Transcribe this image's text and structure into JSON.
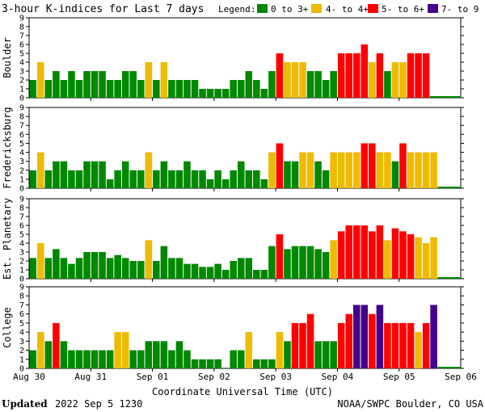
{
  "chart_data": {
    "type": "bar",
    "title": "3-hour K-indices for Last 7 days",
    "legend": {
      "label": "Legend:",
      "placement": "top-right",
      "items": [
        {
          "label": "0 to 3+",
          "color": "#008800"
        },
        {
          "label": "4- to 4+",
          "color": "#eebb00"
        },
        {
          "label": "5- to 6+",
          "color": "#ff0000"
        },
        {
          "label": "7- to 9",
          "color": "#440088"
        }
      ]
    },
    "xlabel": "Coordinate Universal Time (UTC)",
    "x_ticks": [
      "Aug 30",
      "Aug 31",
      "Sep 01",
      "Sep 02",
      "Sep 03",
      "Sep 04",
      "Sep 05",
      "Sep 06"
    ],
    "ylim": [
      0,
      9
    ],
    "y_ticks": [
      0,
      1,
      2,
      3,
      4,
      5,
      6,
      7,
      8,
      9
    ],
    "bars_per_day": 8,
    "days": 7,
    "grid": false,
    "series": [
      {
        "name": "Boulder",
        "values": [
          2,
          4,
          2,
          3,
          2,
          3,
          2,
          3,
          3,
          3,
          2,
          2,
          3,
          3,
          2,
          4,
          2,
          4,
          2,
          2,
          2,
          2,
          1,
          1,
          1,
          1,
          2,
          2,
          3,
          2,
          1,
          3,
          5,
          4,
          4,
          4,
          3,
          3,
          2,
          3,
          5,
          5,
          5,
          6,
          4,
          5,
          3,
          4,
          4,
          5,
          5,
          5
        ]
      },
      {
        "name": "Fredericksburg",
        "values": [
          2,
          4,
          2,
          3,
          3,
          2,
          2,
          3,
          3,
          3,
          1,
          2,
          3,
          2,
          2,
          4,
          2,
          3,
          2,
          2,
          3,
          2,
          2,
          1,
          2,
          1,
          2,
          3,
          2,
          2,
          1,
          4,
          5,
          3,
          3,
          4,
          4,
          3,
          2,
          4,
          4,
          4,
          4,
          5,
          5,
          4,
          4,
          3,
          5,
          4,
          4,
          4,
          4
        ]
      },
      {
        "name": "Est. Planetary",
        "values": [
          2.33,
          4,
          2.33,
          3.33,
          2.33,
          1.67,
          2.33,
          3,
          3,
          3,
          2.33,
          2.67,
          2.33,
          2,
          2,
          4.33,
          2,
          3.67,
          2.33,
          2.33,
          1.67,
          1.67,
          1.33,
          1.33,
          1.67,
          1,
          2,
          2.33,
          2.33,
          1,
          1,
          3.67,
          5,
          3.33,
          3.67,
          3.67,
          3.67,
          3.33,
          3,
          4.33,
          5.33,
          6,
          6,
          6,
          5.33,
          6,
          4.33,
          5.67,
          5.33,
          5,
          4.67,
          4,
          4.67
        ]
      },
      {
        "name": "College",
        "values": [
          2,
          4,
          3,
          5,
          3,
          2,
          2,
          2,
          2,
          2,
          2,
          4,
          4,
          2,
          2,
          3,
          3,
          3,
          2,
          3,
          2,
          1,
          1,
          1,
          1,
          0,
          2,
          2,
          4,
          1,
          1,
          1,
          4,
          3,
          5,
          5,
          6,
          3,
          3,
          3,
          5,
          6,
          7,
          7,
          6,
          7,
          5,
          5,
          5,
          5,
          4,
          5,
          7
        ]
      }
    ]
  },
  "footer": {
    "updated_label": "Updated",
    "updated_value": "2022 Sep  5 1230",
    "credit": "NOAA/SWPC Boulder, CO USA"
  }
}
